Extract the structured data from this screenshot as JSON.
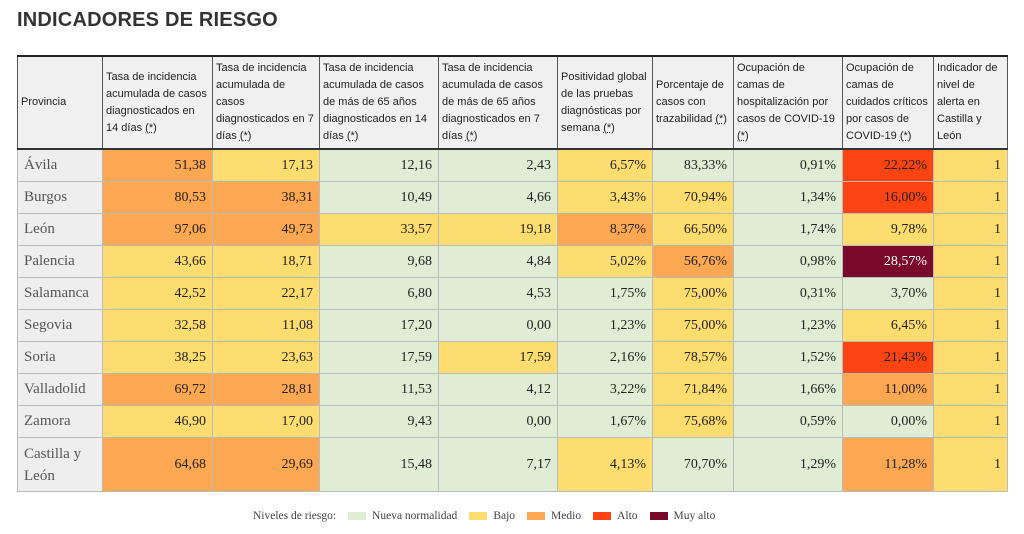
{
  "title": "INDICADORES DE RIESGO",
  "headers": [
    {
      "text": "Provincia",
      "note": ""
    },
    {
      "text": "Tasa de incidencia acumulada de casos diagnosticados en 14 días",
      "note": "(*)"
    },
    {
      "text": "Tasa de incidencia acumulada de casos diagnosticados en 7 días",
      "note": "(*)"
    },
    {
      "text": "Tasa de incidencia acumulada de casos de más de 65 años diagnosticados en 14 días",
      "note": "(*)"
    },
    {
      "text": "Tasa de incidencia acumulada de casos de más de 65 años diagnosticados en 7 días",
      "note": "(*)"
    },
    {
      "text": "Positividad global de las pruebas diagnósticas por semana",
      "note": "(*)"
    },
    {
      "text": "Porcentaje de casos con trazabilidad",
      "note": "(*)"
    },
    {
      "text": "Ocupación de camas de hospitalización por casos de COVID-19",
      "note": "(*)"
    },
    {
      "text": "Ocupación de camas de cuidados críticos por casos de COVID-19",
      "note": "(*)"
    },
    {
      "text": "Indicador de nivel de alerta en Castilla y León",
      "note": ""
    }
  ],
  "rows": [
    {
      "provincia": "Ávila",
      "values": [
        "51,38",
        "17,13",
        "12,16",
        "2,43",
        "6,57%",
        "83,33%",
        "0,91%",
        "22,22%",
        "1"
      ],
      "levels": [
        "m",
        "b",
        "n",
        "n",
        "b",
        "n",
        "n",
        "a",
        "b"
      ]
    },
    {
      "provincia": "Burgos",
      "values": [
        "80,53",
        "38,31",
        "10,49",
        "4,66",
        "3,43%",
        "70,94%",
        "1,34%",
        "16,00%",
        "1"
      ],
      "levels": [
        "m",
        "m",
        "n",
        "n",
        "b",
        "b",
        "n",
        "a",
        "b"
      ]
    },
    {
      "provincia": "León",
      "values": [
        "97,06",
        "49,73",
        "33,57",
        "19,18",
        "8,37%",
        "66,50%",
        "1,74%",
        "9,78%",
        "1"
      ],
      "levels": [
        "m",
        "m",
        "b",
        "b",
        "m",
        "b",
        "n",
        "b",
        "b"
      ]
    },
    {
      "provincia": "Palencia",
      "values": [
        "43,66",
        "18,71",
        "9,68",
        "4,84",
        "5,02%",
        "56,76%",
        "0,98%",
        "28,57%",
        "1"
      ],
      "levels": [
        "b",
        "b",
        "n",
        "n",
        "b",
        "m",
        "n",
        "ma",
        "b"
      ]
    },
    {
      "provincia": "Salamanca",
      "values": [
        "42,52",
        "22,17",
        "6,80",
        "4,53",
        "1,75%",
        "75,00%",
        "0,31%",
        "3,70%",
        "1"
      ],
      "levels": [
        "b",
        "b",
        "n",
        "n",
        "n",
        "b",
        "n",
        "n",
        "b"
      ]
    },
    {
      "provincia": "Segovia",
      "values": [
        "32,58",
        "11,08",
        "17,20",
        "0,00",
        "1,23%",
        "75,00%",
        "1,23%",
        "6,45%",
        "1"
      ],
      "levels": [
        "b",
        "b",
        "n",
        "n",
        "n",
        "b",
        "n",
        "b",
        "b"
      ]
    },
    {
      "provincia": "Soria",
      "values": [
        "38,25",
        "23,63",
        "17,59",
        "17,59",
        "2,16%",
        "78,57%",
        "1,52%",
        "21,43%",
        "1"
      ],
      "levels": [
        "b",
        "b",
        "n",
        "b",
        "n",
        "b",
        "n",
        "a",
        "b"
      ]
    },
    {
      "provincia": "Valladolid",
      "values": [
        "69,72",
        "28,81",
        "11,53",
        "4,12",
        "3,22%",
        "71,84%",
        "1,66%",
        "11,00%",
        "1"
      ],
      "levels": [
        "m",
        "m",
        "n",
        "n",
        "n",
        "b",
        "n",
        "m",
        "b"
      ]
    },
    {
      "provincia": "Zamora",
      "values": [
        "46,90",
        "17,00",
        "9,43",
        "0,00",
        "1,67%",
        "75,68%",
        "0,59%",
        "0,00%",
        "1"
      ],
      "levels": [
        "b",
        "b",
        "n",
        "n",
        "n",
        "b",
        "n",
        "n",
        "b"
      ]
    },
    {
      "provincia": "Castilla y León",
      "values": [
        "64,68",
        "29,69",
        "15,48",
        "7,17",
        "4,13%",
        "70,70%",
        "1,29%",
        "11,28%",
        "1"
      ],
      "levels": [
        "m",
        "m",
        "n",
        "n",
        "b",
        "n",
        "n",
        "m",
        "b"
      ]
    }
  ],
  "legend": {
    "label": "Niveles de riesgo:",
    "items": [
      {
        "key": "n",
        "label": "Nueva normalidad",
        "color": "#deedd4"
      },
      {
        "key": "b",
        "label": "Bajo",
        "color": "#fddc70"
      },
      {
        "key": "m",
        "label": "Medio",
        "color": "#fca751"
      },
      {
        "key": "a",
        "label": "Alto",
        "color": "#fc4413"
      },
      {
        "key": "ma",
        "label": "Muy alto",
        "color": "#7a0a2c"
      }
    ]
  }
}
